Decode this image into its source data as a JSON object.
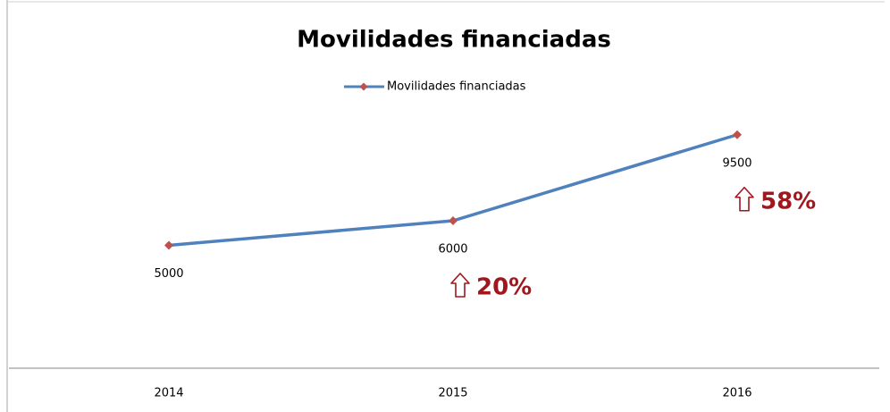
{
  "chart_data": {
    "type": "line",
    "title": "Movilidades financiadas",
    "categories": [
      "2014",
      "2015",
      "2016"
    ],
    "series": [
      {
        "name": "Movilidades financiadas",
        "color": "#4f81bd",
        "marker_color": "#c0504d",
        "values": [
          5000,
          6000,
          9500
        ]
      }
    ],
    "annotations": [
      null,
      "20%",
      "58%"
    ],
    "ylim": [
      0,
      10000
    ],
    "legend": "top"
  }
}
